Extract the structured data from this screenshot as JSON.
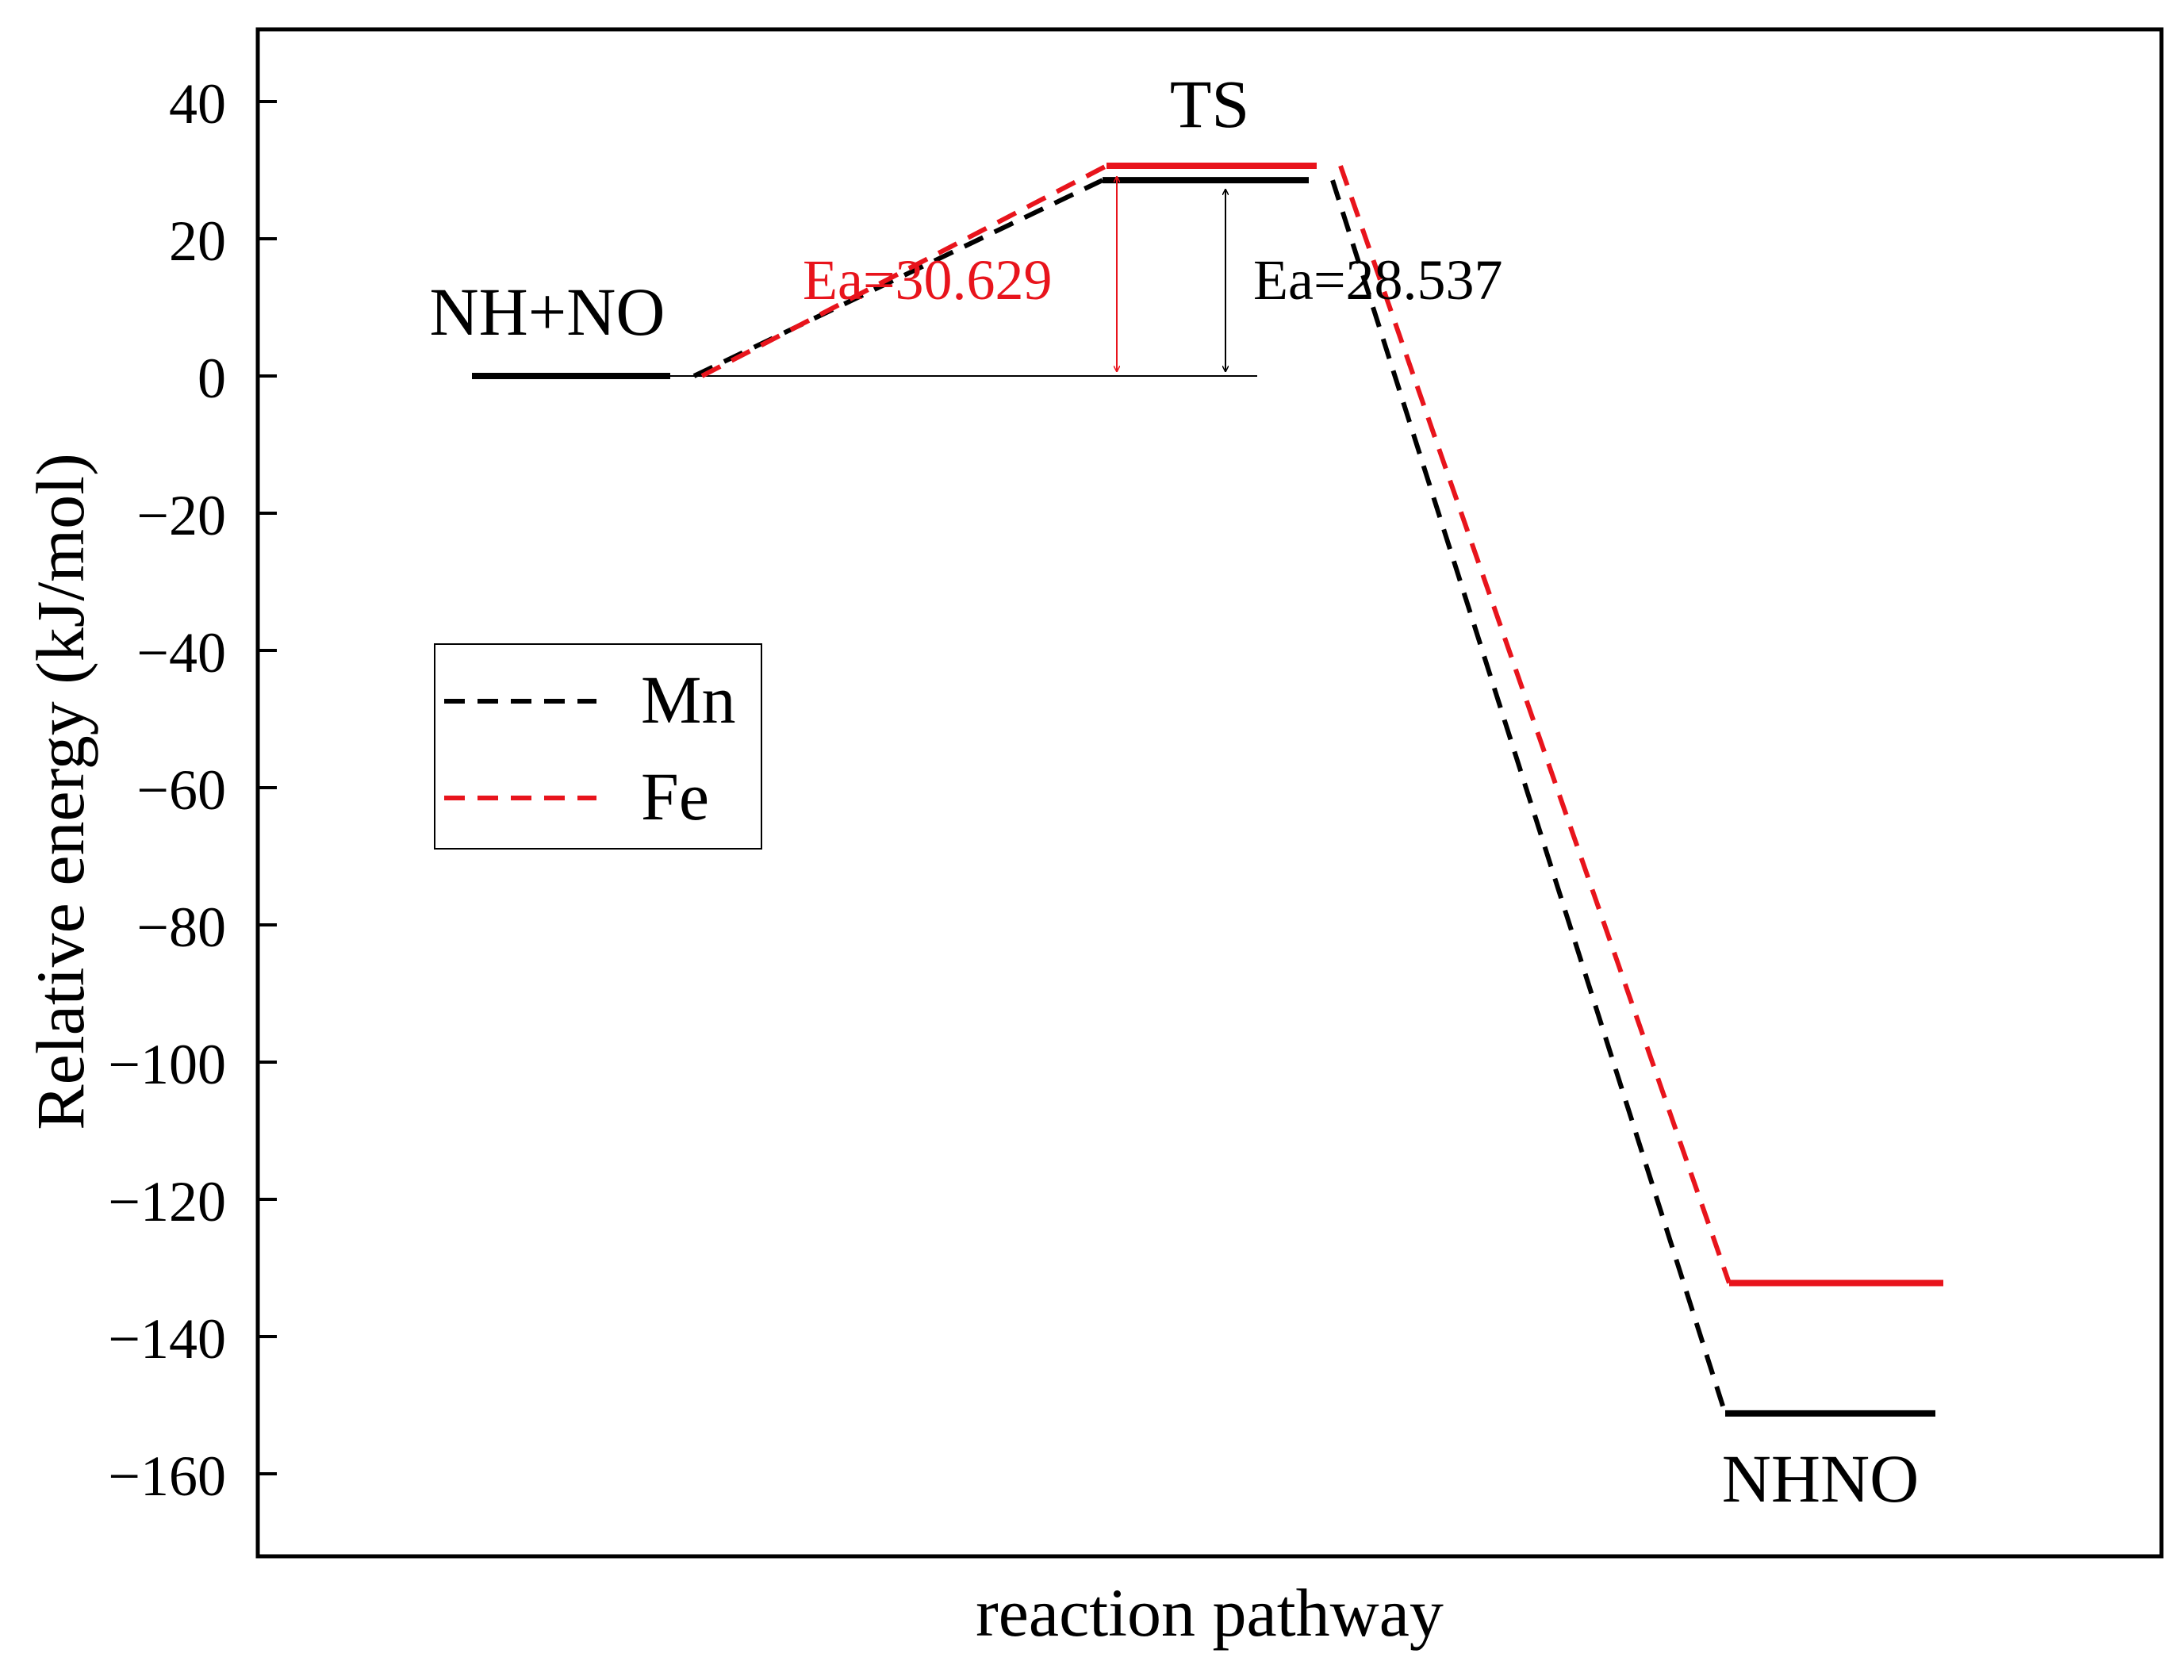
{
  "chart_data": {
    "type": "line",
    "title": "",
    "xlabel": "reaction pathway",
    "ylabel": "Relative energy (kJ/mol)",
    "ylim": [
      -170,
      50
    ],
    "yticks": [
      40,
      20,
      0,
      -20,
      -40,
      -60,
      -80,
      -100,
      -120,
      -140,
      -160
    ],
    "ytick_labels": [
      "40",
      "20",
      "0",
      "−20",
      "−40",
      "−60",
      "−80",
      "−100",
      "−120",
      "−140",
      "−160"
    ],
    "states": [
      "NH+NO",
      "TS",
      "NHNO"
    ],
    "series": [
      {
        "name": "Mn",
        "color": "#000000",
        "values": [
          0,
          28.537,
          -151.2
        ]
      },
      {
        "name": "Fe",
        "color": "#e8141c",
        "values": [
          0,
          30.629,
          -132.2
        ]
      }
    ],
    "annotations": {
      "state_labels": [
        "NH+NO",
        "TS",
        "NHNO"
      ],
      "ea_fe": "Ea=30.629",
      "ea_mn": "Ea=28.537"
    },
    "legend": {
      "position": "middle-left",
      "entries": [
        "Mn",
        "Fe"
      ]
    },
    "grid": false
  }
}
